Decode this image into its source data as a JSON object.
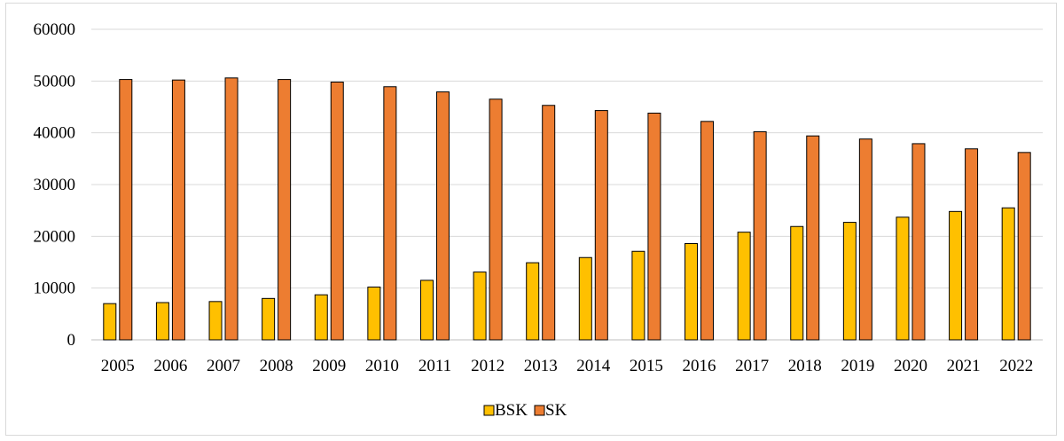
{
  "chart_data": {
    "type": "bar",
    "categories": [
      "2005",
      "2006",
      "2007",
      "2008",
      "2009",
      "2010",
      "2011",
      "2012",
      "2013",
      "2014",
      "2015",
      "2016",
      "2017",
      "2018",
      "2019",
      "2020",
      "2021",
      "2022"
    ],
    "series": [
      {
        "name": "BSK",
        "color": "#FFC000",
        "values": [
          7000,
          7200,
          7400,
          8000,
          8700,
          10200,
          11500,
          13100,
          14900,
          15900,
          17100,
          18600,
          20800,
          21900,
          22700,
          23700,
          24800,
          25500
        ]
      },
      {
        "name": "SK",
        "color": "#ED7D31",
        "values": [
          50300,
          50200,
          50600,
          50300,
          49800,
          48900,
          47900,
          46500,
          45300,
          44300,
          43800,
          42200,
          40200,
          39400,
          38800,
          37900,
          36900,
          36200
        ]
      }
    ],
    "ylim": [
      0,
      60000
    ],
    "yticks": [
      "0",
      "10000",
      "20000",
      "30000",
      "40000",
      "50000",
      "60000"
    ],
    "grid": true,
    "legend_position": "bottom"
  }
}
